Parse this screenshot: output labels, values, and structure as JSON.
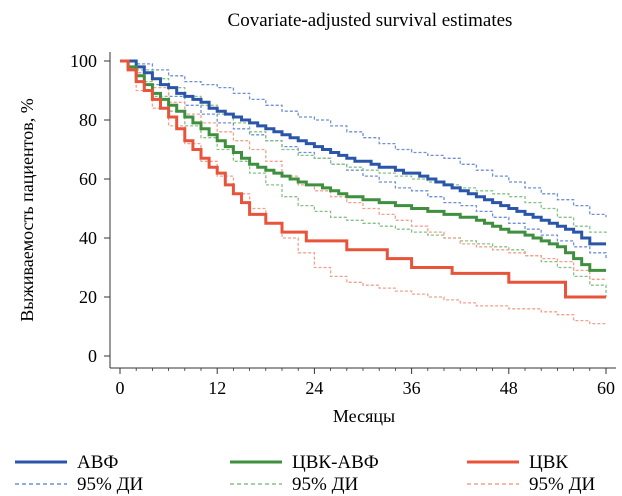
{
  "chart_data": {
    "type": "line",
    "title": "Covariate-adjusted survival estimates",
    "xlabel": "Месяцы",
    "ylabel": "Выживаемость пациентов, %",
    "xlim": [
      0,
      60
    ],
    "ylim": [
      0,
      100
    ],
    "xticks": [
      "0",
      "12",
      "24",
      "36",
      "48",
      "60"
    ],
    "yticks": [
      "0",
      "20",
      "40",
      "60",
      "80",
      "100"
    ],
    "grid": false,
    "step": true,
    "legend_position": "bottom",
    "colors": {
      "avf": "#2b55a8",
      "avf_ci": "#6f8fd6",
      "cvk_avf": "#3f8f3f",
      "cvk_avf_ci": "#86c086",
      "cvk": "#e8533a",
      "cvk_ci": "#f2a08e"
    },
    "legend": [
      {
        "key": "avf",
        "label": "АВФ",
        "ci_label": "95% ДИ"
      },
      {
        "key": "cvk_avf",
        "label": "ЦВК-АВФ",
        "ci_label": "95% ДИ"
      },
      {
        "key": "cvk",
        "label": "ЦВК",
        "ci_label": "95% ДИ"
      }
    ],
    "series": [
      {
        "name": "АВФ",
        "key": "avf",
        "style": "solid",
        "x": [
          0,
          1,
          2,
          3,
          4,
          5,
          6,
          7,
          8,
          9,
          10,
          11,
          12,
          13,
          14,
          15,
          16,
          17,
          18,
          19,
          20,
          21,
          22,
          23,
          24,
          25,
          26,
          27,
          28,
          29,
          30,
          31,
          32,
          33,
          34,
          35,
          36,
          37,
          38,
          39,
          40,
          41,
          42,
          43,
          44,
          45,
          46,
          47,
          48,
          49,
          50,
          51,
          52,
          53,
          54,
          55,
          56,
          57,
          58,
          59,
          60
        ],
        "y": [
          100,
          100,
          98,
          96,
          94,
          92,
          91,
          89,
          88,
          87,
          86,
          84,
          83,
          82,
          81,
          80,
          79,
          78,
          77,
          76,
          75,
          74,
          73,
          72,
          71,
          70,
          69,
          68,
          67,
          66,
          66,
          65,
          64,
          64,
          63,
          62,
          62,
          61,
          60,
          59,
          58,
          57,
          56,
          55,
          54,
          53,
          52,
          51,
          50,
          49,
          48,
          47,
          46,
          45,
          44,
          43,
          42,
          40,
          38,
          38,
          38
        ]
      },
      {
        "name": "95% ДИ",
        "key": "avf_ci_upper",
        "style": "dashed",
        "x": [
          0,
          2,
          4,
          6,
          8,
          10,
          12,
          14,
          16,
          18,
          20,
          22,
          24,
          26,
          28,
          30,
          32,
          34,
          36,
          38,
          40,
          42,
          44,
          46,
          48,
          50,
          52,
          54,
          56,
          58,
          60
        ],
        "y": [
          100,
          99,
          97,
          95,
          93,
          92,
          91,
          89,
          87,
          85,
          83,
          81,
          80,
          78,
          76,
          74,
          72,
          70,
          69,
          68,
          67,
          65,
          63,
          61,
          59,
          57,
          55,
          53,
          51,
          48,
          47
        ]
      },
      {
        "name": "95% ДИ",
        "key": "avf_ci_lower",
        "style": "dashed",
        "x": [
          0,
          2,
          4,
          6,
          8,
          10,
          12,
          14,
          16,
          18,
          20,
          22,
          24,
          26,
          28,
          30,
          32,
          34,
          36,
          38,
          40,
          42,
          44,
          46,
          48,
          50,
          52,
          54,
          56,
          58,
          60
        ],
        "y": [
          100,
          96,
          92,
          88,
          85,
          82,
          79,
          77,
          75,
          73,
          71,
          69,
          67,
          65,
          63,
          61,
          59,
          57,
          56,
          54,
          52,
          51,
          49,
          47,
          45,
          43,
          41,
          39,
          37,
          35,
          33
        ]
      },
      {
        "name": "ЦВК-АВФ",
        "key": "cvk_avf",
        "style": "solid",
        "x": [
          0,
          1,
          2,
          3,
          4,
          5,
          6,
          7,
          8,
          9,
          10,
          11,
          12,
          13,
          14,
          15,
          16,
          17,
          18,
          19,
          20,
          21,
          22,
          23,
          24,
          25,
          26,
          27,
          28,
          29,
          30,
          31,
          32,
          33,
          34,
          35,
          36,
          37,
          38,
          39,
          40,
          41,
          42,
          43,
          44,
          45,
          46,
          47,
          48,
          49,
          50,
          51,
          52,
          53,
          54,
          55,
          56,
          57,
          58,
          59,
          60
        ],
        "y": [
          100,
          98,
          95,
          92,
          89,
          87,
          85,
          83,
          81,
          79,
          77,
          75,
          73,
          71,
          69,
          67,
          65,
          64,
          63,
          62,
          61,
          60,
          59,
          58,
          58,
          57,
          56,
          55,
          54,
          54,
          53,
          53,
          52,
          52,
          51,
          51,
          50,
          50,
          49,
          49,
          48,
          48,
          47,
          47,
          46,
          45,
          44,
          43,
          42,
          42,
          41,
          40,
          39,
          38,
          37,
          35,
          33,
          31,
          29,
          29,
          29
        ]
      },
      {
        "name": "95% ДИ",
        "key": "cvk_avf_ci_upper",
        "style": "dashed",
        "x": [
          0,
          2,
          4,
          6,
          8,
          10,
          12,
          14,
          16,
          18,
          20,
          22,
          24,
          26,
          28,
          30,
          32,
          34,
          36,
          38,
          40,
          42,
          44,
          46,
          48,
          50,
          52,
          54,
          56,
          58,
          60
        ],
        "y": [
          100,
          97,
          94,
          91,
          88,
          85,
          82,
          79,
          76,
          73,
          70,
          68,
          67,
          65,
          64,
          63,
          62,
          61,
          60,
          59,
          58,
          57,
          56,
          55,
          54,
          52,
          50,
          47,
          44,
          42,
          41
        ]
      },
      {
        "name": "95% ДИ",
        "key": "cvk_avf_ci_lower",
        "style": "dashed",
        "x": [
          0,
          2,
          4,
          6,
          8,
          10,
          12,
          14,
          16,
          18,
          20,
          22,
          24,
          26,
          28,
          30,
          32,
          34,
          36,
          38,
          40,
          42,
          44,
          46,
          48,
          50,
          52,
          54,
          56,
          58,
          60
        ],
        "y": [
          100,
          93,
          88,
          83,
          78,
          74,
          70,
          66,
          62,
          58,
          54,
          51,
          49,
          47,
          46,
          45,
          44,
          43,
          42,
          41,
          40,
          39,
          38,
          37,
          36,
          34,
          32,
          30,
          27,
          24,
          20
        ]
      },
      {
        "name": "ЦВК",
        "key": "cvk",
        "style": "solid",
        "x": [
          0,
          1,
          2,
          3,
          4,
          5,
          6,
          7,
          8,
          9,
          10,
          11,
          12,
          13,
          14,
          15,
          16,
          17,
          18,
          19,
          20,
          21,
          22,
          23,
          24,
          25,
          26,
          27,
          28,
          29,
          30,
          31,
          32,
          33,
          34,
          35,
          36,
          37,
          38,
          39,
          40,
          41,
          42,
          43,
          44,
          45,
          46,
          47,
          48,
          49,
          50,
          51,
          52,
          53,
          54,
          55,
          56,
          57,
          58,
          59,
          60
        ],
        "y": [
          100,
          97,
          93,
          90,
          87,
          84,
          81,
          77,
          73,
          70,
          67,
          64,
          62,
          58,
          55,
          52,
          48,
          48,
          45,
          45,
          42,
          42,
          42,
          39,
          39,
          39,
          39,
          39,
          36,
          36,
          36,
          36,
          36,
          33,
          33,
          33,
          30,
          30,
          30,
          30,
          30,
          28,
          28,
          28,
          28,
          28,
          28,
          28,
          25,
          25,
          25,
          25,
          25,
          25,
          25,
          20,
          20,
          20,
          20,
          20,
          20
        ]
      },
      {
        "name": "95% ДИ",
        "key": "cvk_ci_upper",
        "style": "dashed",
        "x": [
          0,
          2,
          4,
          6,
          8,
          10,
          12,
          14,
          16,
          18,
          20,
          22,
          24,
          26,
          28,
          30,
          32,
          34,
          36,
          38,
          40,
          42,
          44,
          46,
          48,
          50,
          52,
          54,
          56,
          58,
          60
        ],
        "y": [
          100,
          96,
          91,
          86,
          82,
          79,
          76,
          73,
          70,
          66,
          61,
          58,
          56,
          54,
          52,
          50,
          48,
          46,
          44,
          42,
          40,
          38,
          37,
          36,
          35,
          34,
          33,
          32,
          29,
          26,
          26
        ]
      },
      {
        "name": "95% ДИ",
        "key": "cvk_ci_lower",
        "style": "dashed",
        "x": [
          0,
          2,
          4,
          6,
          8,
          10,
          12,
          14,
          16,
          18,
          20,
          22,
          24,
          26,
          28,
          30,
          32,
          34,
          36,
          38,
          40,
          42,
          44,
          46,
          48,
          50,
          52,
          54,
          56,
          58,
          60
        ],
        "y": [
          100,
          90,
          84,
          78,
          72,
          66,
          61,
          55,
          50,
          45,
          40,
          35,
          30,
          27,
          25,
          24,
          23,
          22,
          21,
          20,
          19,
          18,
          17,
          17,
          16,
          16,
          15,
          14,
          12,
          11,
          11
        ]
      }
    ]
  }
}
